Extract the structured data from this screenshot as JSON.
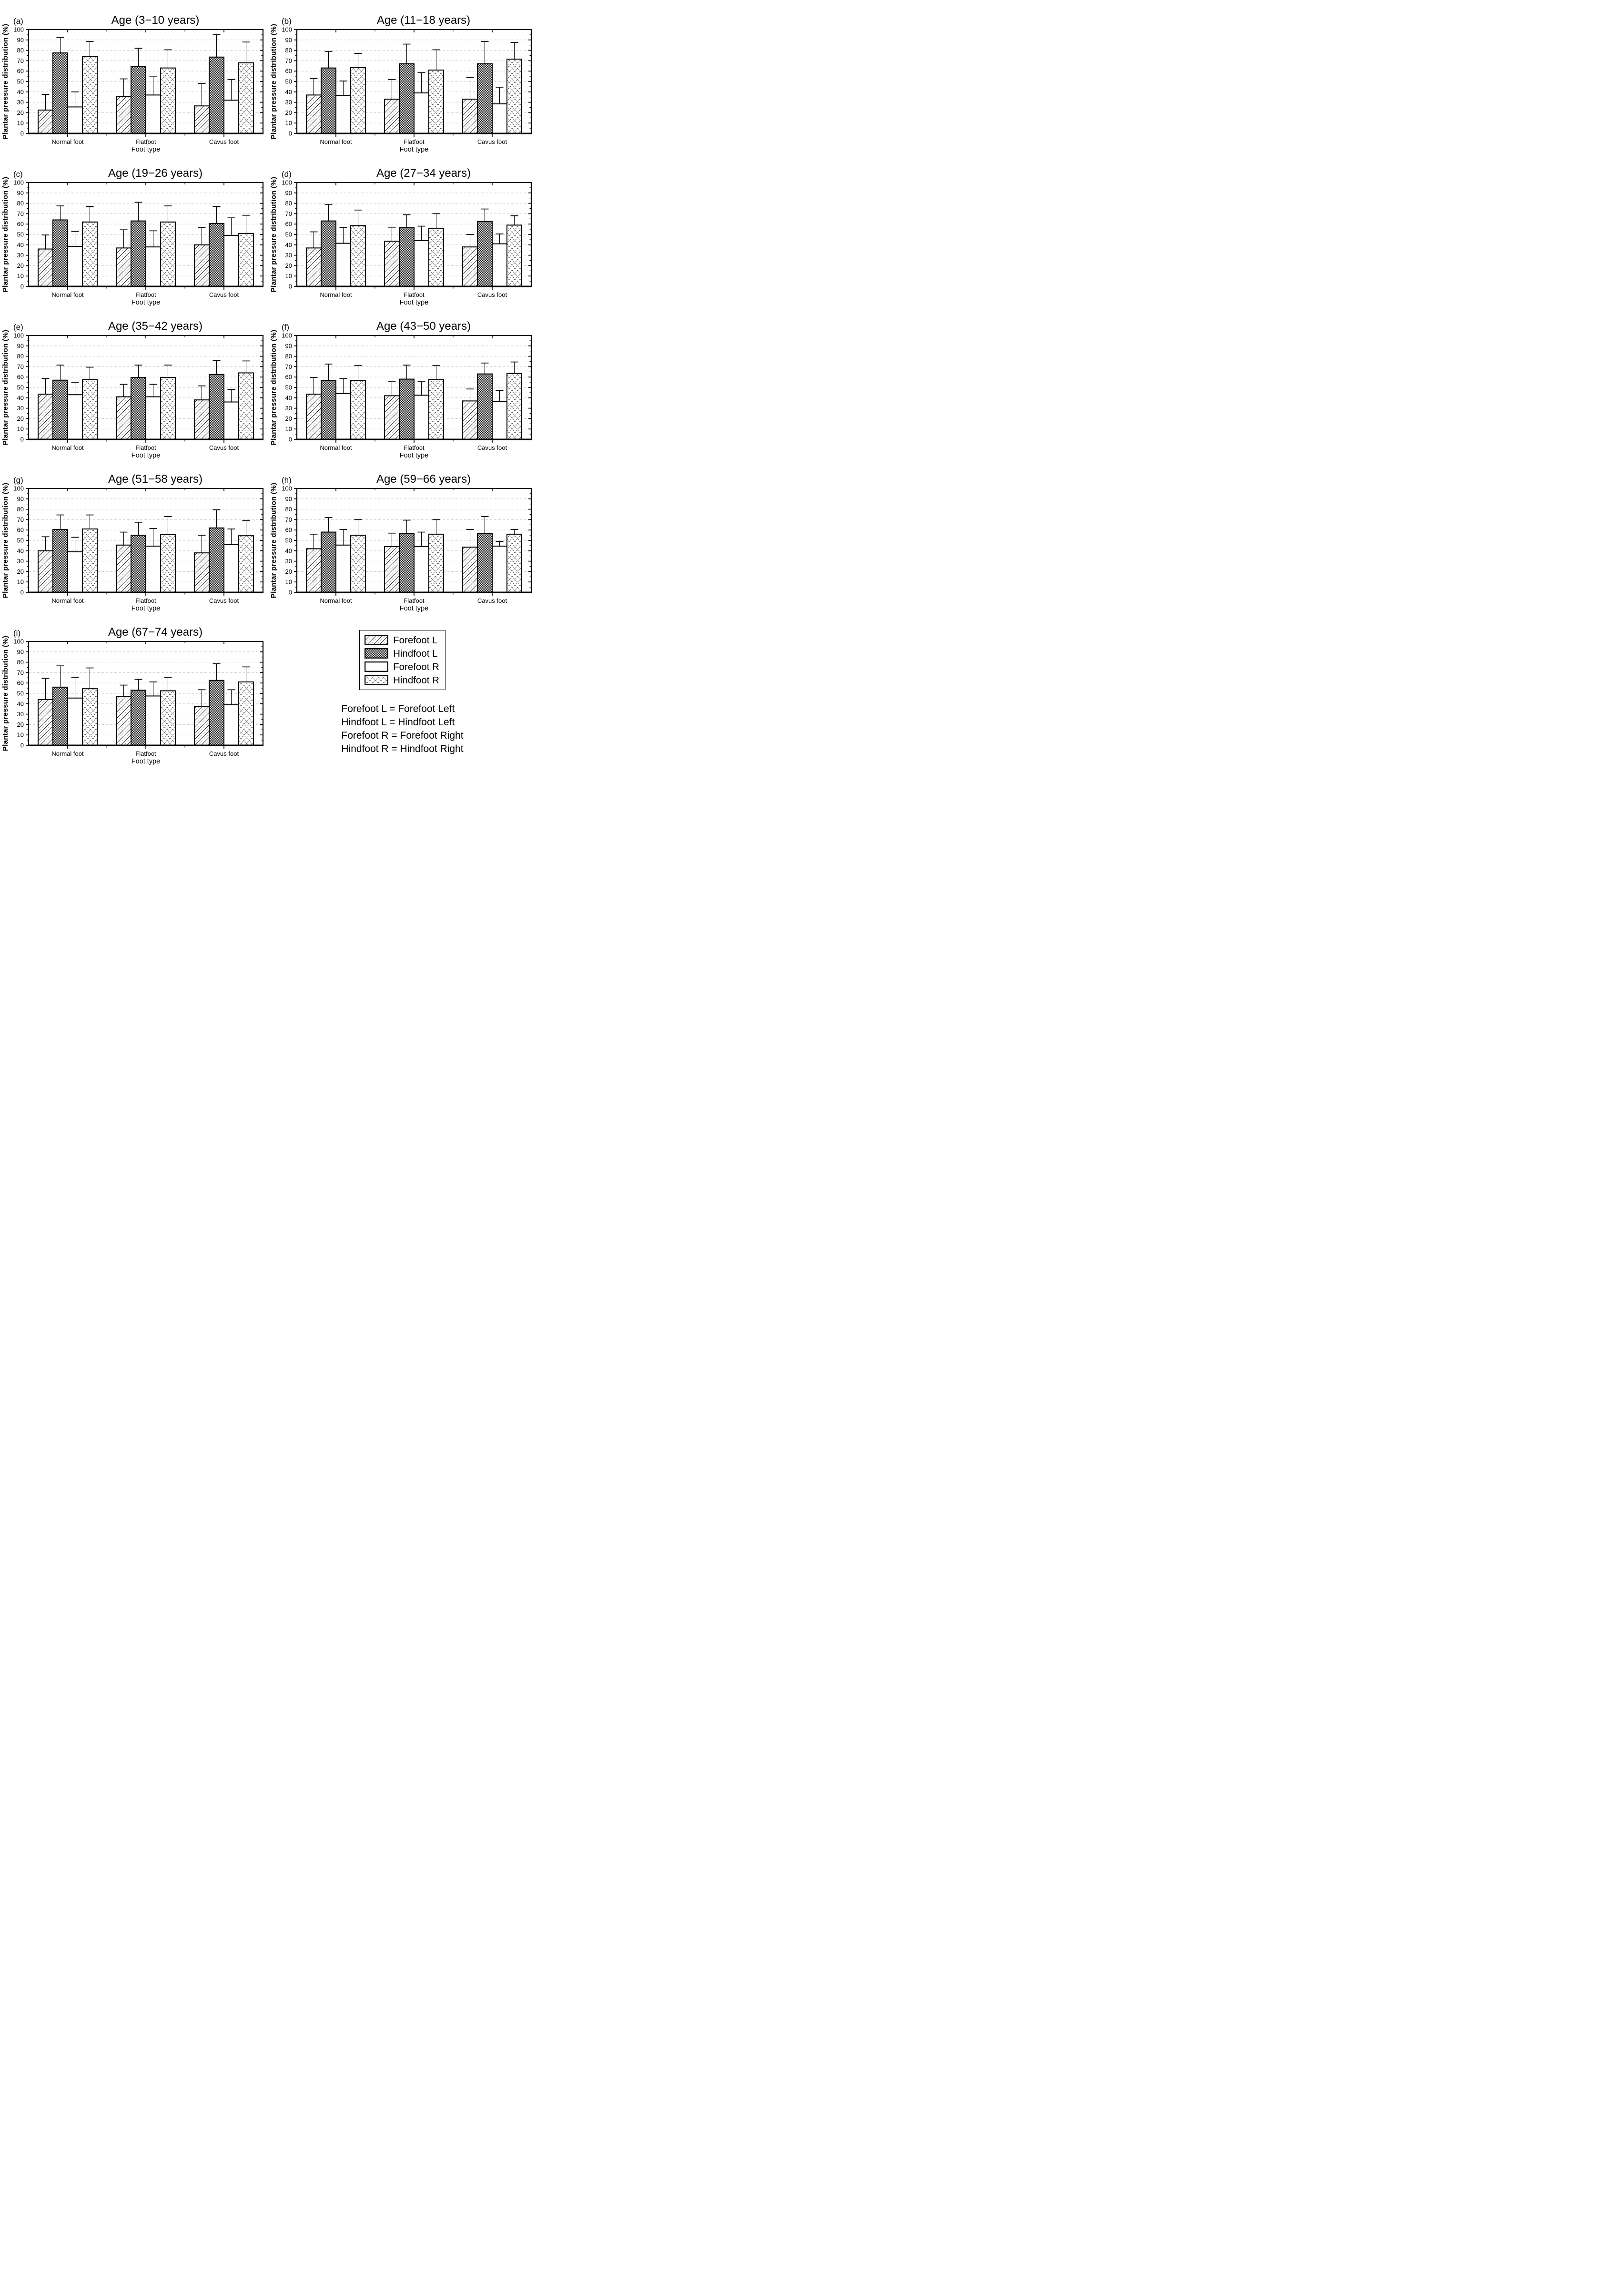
{
  "style": {
    "foreground": "#000000",
    "grid_line": "#c8c8c8",
    "background": "#ffffff"
  },
  "legend": {
    "items": [
      {
        "label": "Forefoot L",
        "swatch": "diagonal-hatch"
      },
      {
        "label": "Hindfoot L",
        "swatch": "checkerboard"
      },
      {
        "label": "Forefoot R",
        "swatch": "solid-white"
      },
      {
        "label": "Hindfoot R",
        "swatch": "diamond-crosshatch"
      }
    ]
  },
  "caption": {
    "lines": [
      "Forefoot L = Forefoot Left",
      "Hindfoot L = Hindfoot Left",
      "Forefoot R = Forefoot Right",
      "Hindfoot R = Hindfoot Right"
    ]
  },
  "chart_data": [
    {
      "type": "bar",
      "panel": "a",
      "panel_label": "(a)",
      "title": "Age (3−10 years)",
      "categories": [
        "Normal foot",
        "Flatfoot",
        "Cavus foot"
      ],
      "xlabel": "Foot type",
      "ylabel": "Plantar pressure distribution (%)",
      "ylim": [
        0,
        100
      ],
      "ytick_step": 10,
      "grid": "dashed-horizontal",
      "error_bars": "+SD",
      "series": [
        {
          "name": "Forefoot L",
          "swatch": "diagonal-hatch",
          "values": [
            22.5,
            35.5,
            26.5
          ],
          "sd": [
            15,
            17,
            21.5
          ]
        },
        {
          "name": "Hindfoot L",
          "swatch": "checkerboard",
          "values": [
            77.5,
            64.5,
            73.5
          ],
          "sd": [
            15,
            17.5,
            21.5
          ]
        },
        {
          "name": "Forefoot R",
          "swatch": "solid-white",
          "values": [
            25.5,
            37,
            32
          ],
          "sd": [
            14.5,
            17.5,
            20
          ]
        },
        {
          "name": "Hindfoot R",
          "swatch": "diamond-crosshatch",
          "values": [
            74,
            63,
            68
          ],
          "sd": [
            14.5,
            17.5,
            20
          ]
        }
      ]
    },
    {
      "type": "bar",
      "panel": "b",
      "panel_label": "(b)",
      "title": "Age (11−18 years)",
      "categories": [
        "Normal foot",
        "Flatfoot",
        "Cavus foot"
      ],
      "xlabel": "Foot type",
      "ylabel": "Plantar pressure distribution (%)",
      "ylim": [
        0,
        100
      ],
      "ytick_step": 10,
      "grid": "dashed-horizontal",
      "error_bars": "+SD",
      "series": [
        {
          "name": "Forefoot L",
          "swatch": "diagonal-hatch",
          "values": [
            37,
            33,
            33
          ],
          "sd": [
            16,
            19,
            21
          ]
        },
        {
          "name": "Hindfoot L",
          "swatch": "checkerboard",
          "values": [
            63,
            67,
            67
          ],
          "sd": [
            16,
            19,
            21.5
          ]
        },
        {
          "name": "Forefoot R",
          "swatch": "solid-white",
          "values": [
            36.5,
            39,
            28.5
          ],
          "sd": [
            14,
            19.5,
            16
          ]
        },
        {
          "name": "Hindfoot R",
          "swatch": "diamond-crosshatch",
          "values": [
            63.5,
            61,
            71.5
          ],
          "sd": [
            13.5,
            19.5,
            16
          ]
        }
      ]
    },
    {
      "type": "bar",
      "panel": "c",
      "panel_label": "(c)",
      "title": "Age (19−26 years)",
      "categories": [
        "Normal foot",
        "Flatfoot",
        "Cavus foot"
      ],
      "xlabel": "Foot type",
      "ylabel": "Plantar pressure distribution (%)",
      "ylim": [
        0,
        100
      ],
      "ytick_step": 10,
      "grid": "dashed-horizontal",
      "error_bars": "+SD",
      "series": [
        {
          "name": "Forefoot L",
          "swatch": "diagonal-hatch",
          "values": [
            36,
            37,
            40
          ],
          "sd": [
            13.5,
            17.5,
            16.5
          ]
        },
        {
          "name": "Hindfoot L",
          "swatch": "checkerboard",
          "values": [
            64,
            63,
            60.5
          ],
          "sd": [
            13.5,
            18,
            16.5
          ]
        },
        {
          "name": "Forefoot R",
          "swatch": "solid-white",
          "values": [
            38.5,
            38,
            49
          ],
          "sd": [
            14.5,
            15.5,
            17
          ]
        },
        {
          "name": "Hindfoot R",
          "swatch": "diamond-crosshatch",
          "values": [
            62,
            62,
            51
          ],
          "sd": [
            15,
            15.5,
            17.5
          ]
        }
      ]
    },
    {
      "type": "bar",
      "panel": "d",
      "panel_label": "(d)",
      "title": "Age (27−34 years)",
      "categories": [
        "Normal foot",
        "Flatfoot",
        "Cavus foot"
      ],
      "xlabel": "Foot type",
      "ylabel": "Plantar pressure distribution (%)",
      "ylim": [
        0,
        100
      ],
      "ytick_step": 10,
      "grid": "dashed-horizontal",
      "error_bars": "+SD",
      "series": [
        {
          "name": "Forefoot L",
          "swatch": "diagonal-hatch",
          "values": [
            37,
            43.5,
            38
          ],
          "sd": [
            15.5,
            13.5,
            12
          ]
        },
        {
          "name": "Hindfoot L",
          "swatch": "checkerboard",
          "values": [
            63,
            56.5,
            62.5
          ],
          "sd": [
            16,
            12.5,
            12
          ]
        },
        {
          "name": "Forefoot R",
          "swatch": "solid-white",
          "values": [
            41.5,
            44,
            41
          ],
          "sd": [
            15,
            14,
            9.5
          ]
        },
        {
          "name": "Hindfoot R",
          "swatch": "diamond-crosshatch",
          "values": [
            58.5,
            56,
            59
          ],
          "sd": [
            15,
            14,
            9
          ]
        }
      ]
    },
    {
      "type": "bar",
      "panel": "e",
      "panel_label": "(e)",
      "title": "Age (35−42 years)",
      "categories": [
        "Normal foot",
        "Flatfoot",
        "Cavus foot"
      ],
      "xlabel": "Foot type",
      "ylabel": "Plantar pressure distribution (%)",
      "ylim": [
        0,
        100
      ],
      "ytick_step": 10,
      "grid": "dashed-horizontal",
      "error_bars": "+SD",
      "series": [
        {
          "name": "Forefoot L",
          "swatch": "diagonal-hatch",
          "values": [
            43.5,
            41,
            38
          ],
          "sd": [
            15,
            12,
            13.5
          ]
        },
        {
          "name": "Hindfoot L",
          "swatch": "checkerboard",
          "values": [
            57,
            59.5,
            62.5
          ],
          "sd": [
            14.5,
            12,
            13.5
          ]
        },
        {
          "name": "Forefoot R",
          "swatch": "solid-white",
          "values": [
            43,
            41,
            36
          ],
          "sd": [
            12,
            12,
            12
          ]
        },
        {
          "name": "Hindfoot R",
          "swatch": "diamond-crosshatch",
          "values": [
            57.5,
            59.5,
            64
          ],
          "sd": [
            12,
            12,
            11.5
          ]
        }
      ]
    },
    {
      "type": "bar",
      "panel": "f",
      "panel_label": "(f)",
      "title": "Age (43−50 years)",
      "categories": [
        "Normal foot",
        "Flatfoot",
        "Cavus foot"
      ],
      "xlabel": "Foot type",
      "ylabel": "Plantar pressure distribution (%)",
      "ylim": [
        0,
        100
      ],
      "ytick_step": 10,
      "grid": "dashed-horizontal",
      "error_bars": "+SD",
      "series": [
        {
          "name": "Forefoot L",
          "swatch": "diagonal-hatch",
          "values": [
            43.5,
            42,
            37
          ],
          "sd": [
            16,
            13.5,
            11.5
          ]
        },
        {
          "name": "Hindfoot L",
          "swatch": "checkerboard",
          "values": [
            56.5,
            58,
            63
          ],
          "sd": [
            16,
            13.5,
            10.5
          ]
        },
        {
          "name": "Forefoot R",
          "swatch": "solid-white",
          "values": [
            44,
            42.5,
            36.5
          ],
          "sd": [
            14.5,
            13,
            10.5
          ]
        },
        {
          "name": "Hindfoot R",
          "swatch": "diamond-crosshatch",
          "values": [
            56.5,
            57.5,
            63.5
          ],
          "sd": [
            14.5,
            13.5,
            11
          ]
        }
      ]
    },
    {
      "type": "bar",
      "panel": "g",
      "panel_label": "(g)",
      "title": "Age (51−58 years)",
      "categories": [
        "Normal foot",
        "Flatfoot",
        "Cavus foot"
      ],
      "xlabel": "Foot type",
      "ylabel": "Plantar pressure distribution (%)",
      "ylim": [
        0,
        100
      ],
      "ytick_step": 10,
      "grid": "dashed-horizontal",
      "error_bars": "+SD",
      "series": [
        {
          "name": "Forefoot L",
          "swatch": "diagonal-hatch",
          "values": [
            40,
            45.5,
            38
          ],
          "sd": [
            13.5,
            12.5,
            17
          ]
        },
        {
          "name": "Hindfoot L",
          "swatch": "checkerboard",
          "values": [
            60.5,
            55,
            62
          ],
          "sd": [
            14,
            12.5,
            17.5
          ]
        },
        {
          "name": "Forefoot R",
          "swatch": "solid-white",
          "values": [
            39,
            44.5,
            46
          ],
          "sd": [
            14,
            17,
            15
          ]
        },
        {
          "name": "Hindfoot R",
          "swatch": "diamond-crosshatch",
          "values": [
            61,
            55.5,
            54.5
          ],
          "sd": [
            13.5,
            17.5,
            14.5
          ]
        }
      ]
    },
    {
      "type": "bar",
      "panel": "h",
      "panel_label": "(h)",
      "title": "Age (59−66 years)",
      "categories": [
        "Normal foot",
        "Flatfoot",
        "Cavus foot"
      ],
      "xlabel": "Foot type",
      "ylabel": "Plantar pressure distribution (%)",
      "ylim": [
        0,
        100
      ],
      "ytick_step": 10,
      "grid": "dashed-horizontal",
      "error_bars": "+SD",
      "series": [
        {
          "name": "Forefoot L",
          "swatch": "diagonal-hatch",
          "values": [
            42,
            44,
            43.5
          ],
          "sd": [
            14,
            13,
            17
          ]
        },
        {
          "name": "Hindfoot L",
          "swatch": "checkerboard",
          "values": [
            58,
            56.5,
            56.5
          ],
          "sd": [
            14,
            13,
            16.5
          ]
        },
        {
          "name": "Forefoot R",
          "swatch": "solid-white",
          "values": [
            45.5,
            44,
            44.5
          ],
          "sd": [
            15,
            14,
            4.5
          ]
        },
        {
          "name": "Hindfoot R",
          "swatch": "diamond-crosshatch",
          "values": [
            55,
            56,
            56
          ],
          "sd": [
            15,
            14,
            4.5
          ]
        }
      ]
    },
    {
      "type": "bar",
      "panel": "i",
      "panel_label": "(i)",
      "title": "Age (67−74 years)",
      "categories": [
        "Normal foot",
        "Flatfoot",
        "Cavus foot"
      ],
      "xlabel": "Foot type",
      "ylabel": "Plantar pressure distribution (%)",
      "ylim": [
        0,
        100
      ],
      "ytick_step": 10,
      "grid": "dashed-horizontal",
      "error_bars": "+SD",
      "series": [
        {
          "name": "Forefoot L",
          "swatch": "diagonal-hatch",
          "values": [
            44,
            47,
            37.5
          ],
          "sd": [
            20.5,
            11,
            16
          ]
        },
        {
          "name": "Hindfoot L",
          "swatch": "checkerboard",
          "values": [
            56,
            53,
            62.5
          ],
          "sd": [
            20.5,
            10.5,
            16
          ]
        },
        {
          "name": "Forefoot R",
          "swatch": "solid-white",
          "values": [
            45.5,
            47.5,
            39
          ],
          "sd": [
            20,
            13.5,
            14.5
          ]
        },
        {
          "name": "Hindfoot R",
          "swatch": "diamond-crosshatch",
          "values": [
            54.5,
            52.5,
            61
          ],
          "sd": [
            20,
            13,
            14.5
          ]
        }
      ]
    }
  ]
}
